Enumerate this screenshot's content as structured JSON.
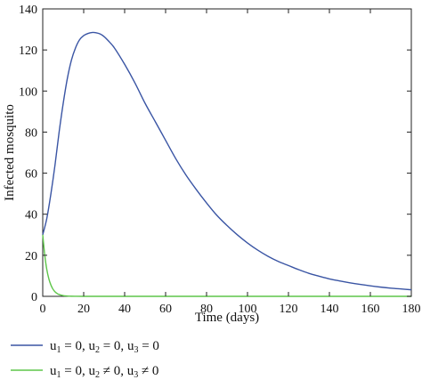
{
  "chart_data": {
    "type": "line",
    "xlabel": "Time (days)",
    "ylabel": "Infected mosquito",
    "xlim": [
      0,
      180
    ],
    "ylim": [
      0,
      140
    ],
    "xticks": [
      0,
      20,
      40,
      60,
      80,
      100,
      120,
      140,
      160,
      180
    ],
    "yticks": [
      0,
      20,
      40,
      60,
      80,
      100,
      120,
      140
    ],
    "grid": false,
    "legend_position": "bottom",
    "series": [
      {
        "name": "u1 = 0, u2 = 0, u3 = 0",
        "legend": {
          "s1": "u",
          "sub1": "1",
          "m1": " = 0, ",
          "s2": "u",
          "sub2": "2",
          "m2": " = 0, ",
          "s3": "u",
          "sub3": "3",
          "m3": " = 0"
        },
        "color": "#3a55a4",
        "x": [
          0,
          2,
          4,
          6,
          8,
          10,
          12,
          14,
          16,
          18,
          20,
          22,
          24,
          26,
          28,
          30,
          32,
          35,
          40,
          45,
          50,
          55,
          60,
          65,
          70,
          75,
          80,
          85,
          90,
          95,
          100,
          105,
          110,
          115,
          120,
          125,
          130,
          135,
          140,
          145,
          150,
          155,
          160,
          165,
          170,
          175,
          180
        ],
        "y": [
          30,
          38,
          50,
          64,
          80,
          94,
          106,
          115,
          121,
          125,
          127,
          128,
          128.5,
          128.4,
          127.8,
          126.5,
          124.5,
          121,
          113,
          104,
          94,
          85,
          76,
          67,
          59,
          52,
          45.5,
          39.5,
          34.5,
          30,
          26,
          22.5,
          19.5,
          17,
          15,
          13,
          11.2,
          9.8,
          8.5,
          7.5,
          6.6,
          5.8,
          5.1,
          4.5,
          4,
          3.6,
          3.2
        ]
      },
      {
        "name": "u1 = 0, u2 ≠ 0, u3 ≠ 0",
        "legend": {
          "s1": "u",
          "sub1": "1",
          "m1": " = 0, ",
          "s2": "u",
          "sub2": "2",
          "m2": " ≠ 0, ",
          "s3": "u",
          "sub3": "3",
          "m3": " ≠ 0"
        },
        "color": "#5ec64a",
        "x": [
          0,
          1,
          2,
          3,
          4,
          5,
          6,
          7,
          8,
          10,
          12,
          14,
          16,
          20,
          30,
          50,
          100,
          180
        ],
        "y": [
          30,
          20,
          13,
          8.5,
          5.5,
          3.5,
          2.2,
          1.4,
          0.9,
          0.35,
          0.15,
          0.05,
          0.02,
          0,
          0,
          0,
          0,
          0
        ]
      }
    ]
  }
}
